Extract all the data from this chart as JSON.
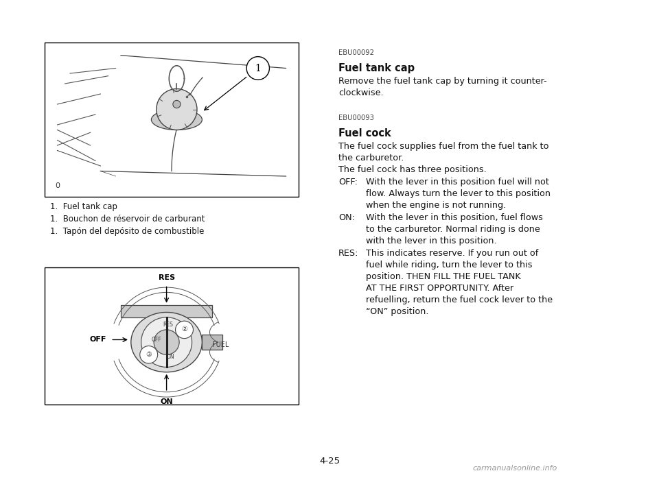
{
  "bg_color": "#ffffff",
  "page_number": "4-25",
  "watermark": "carmanualsonline.info",
  "caption_lines": [
    "1.  Fuel tank cap",
    "1.  Bouchon de réservoir de carburant",
    "1.  Tapón del depósito de combustible"
  ],
  "ebu1_code": "EBU00092",
  "ebu1_title": "Fuel tank cap",
  "ebu2_code": "EBU00093",
  "ebu2_title": "Fuel cock",
  "text_blocks": [
    {
      "type": "code",
      "text": "EBU00092"
    },
    {
      "type": "title",
      "text": "Fuel tank cap"
    },
    {
      "type": "body",
      "text": "Remove the fuel tank cap by turning it counter-"
    },
    {
      "type": "body",
      "text": "clockwise."
    },
    {
      "type": "spacer"
    },
    {
      "type": "spacer"
    },
    {
      "type": "code",
      "text": "EBU00093"
    },
    {
      "type": "title",
      "text": "Fuel cock"
    },
    {
      "type": "body",
      "text": "The fuel cock supplies fuel from the fuel tank to"
    },
    {
      "type": "body",
      "text": "the carburetor."
    },
    {
      "type": "body",
      "text": "The fuel cock has three positions."
    },
    {
      "type": "entry_label",
      "label": "OFF:",
      "text": "With the lever in this position fuel will not"
    },
    {
      "type": "entry_cont",
      "text": "flow. Always turn the lever to this position"
    },
    {
      "type": "entry_cont",
      "text": "when the engine is not running."
    },
    {
      "type": "entry_label",
      "label": "ON:",
      "text": "With the lever in this position, fuel flows"
    },
    {
      "type": "entry_cont",
      "text": "to the carburetor. Normal riding is done"
    },
    {
      "type": "entry_cont",
      "text": "with the lever in this position."
    },
    {
      "type": "entry_label",
      "label": "RES:",
      "text": "This indicates reserve. If you run out of"
    },
    {
      "type": "entry_cont",
      "text": "fuel while riding, turn the lever to this"
    },
    {
      "type": "entry_cont",
      "text": "position. THEN FILL THE FUEL TANK"
    },
    {
      "type": "entry_cont",
      "text": "AT THE FIRST OPPORTUNITY. After"
    },
    {
      "type": "entry_cont",
      "text": "refuelling, return the fuel cock lever to the"
    },
    {
      "type": "entry_cont",
      "text": "“ON” position."
    }
  ]
}
